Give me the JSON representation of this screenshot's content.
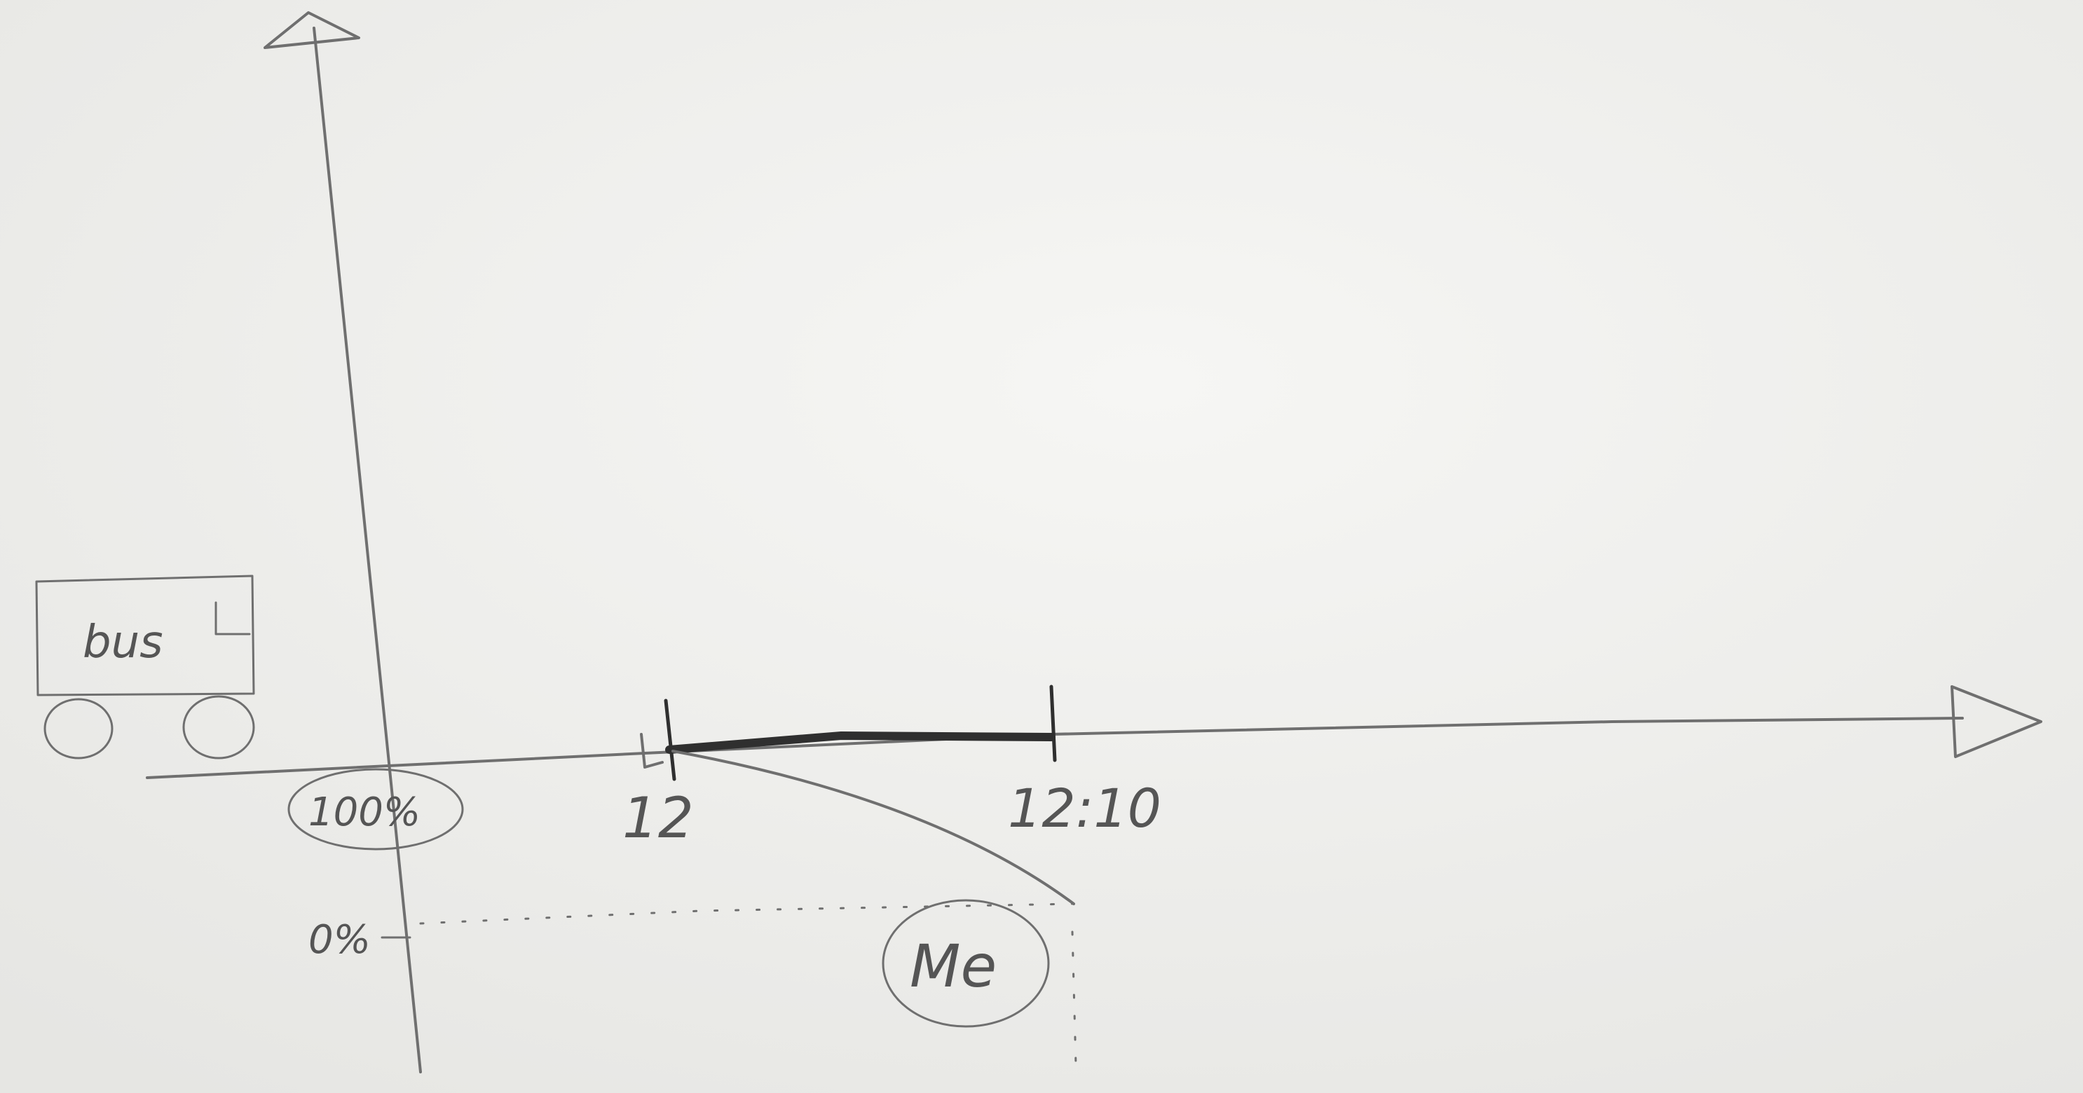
{
  "labels": {
    "bus": "bus",
    "start_percent": "100%",
    "end_percent": "0%",
    "start_time": "12",
    "end_time": "12:10",
    "me": "Me"
  },
  "colors": {
    "paper": "#f1f1ef",
    "pencil": "#6f6f6f",
    "pencil_dark": "#2f2f2f"
  }
}
